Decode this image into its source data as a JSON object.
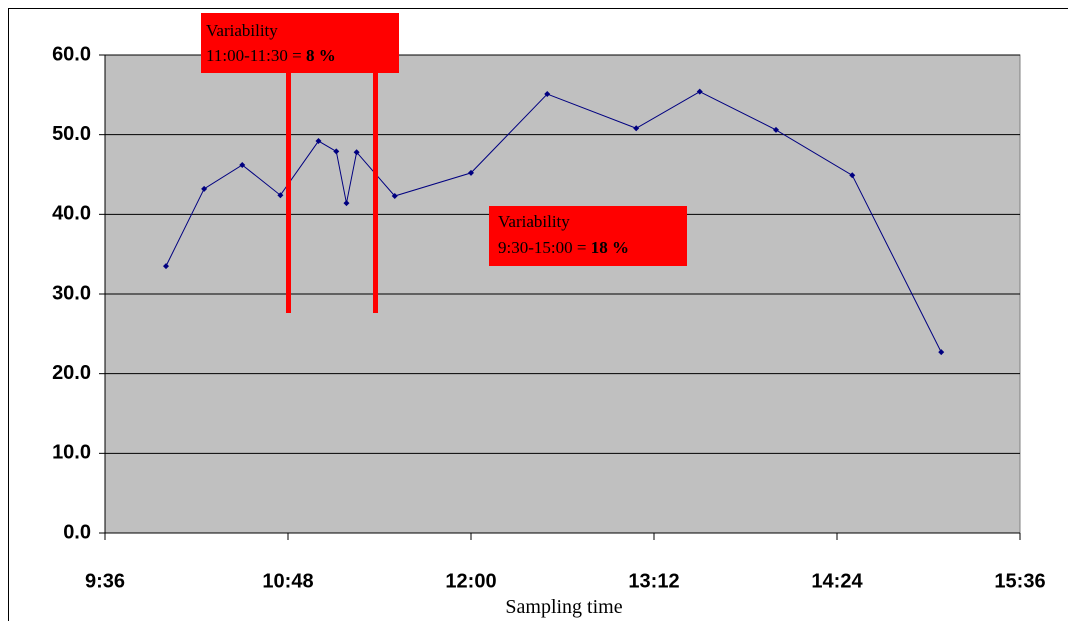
{
  "chart_data": {
    "type": "line",
    "x_label": "Sampling time",
    "x": [
      600,
      615,
      630,
      645,
      660,
      667,
      671,
      675,
      690,
      720,
      750,
      785,
      810,
      840,
      870,
      905
    ],
    "series": [
      {
        "color": "#000080",
        "values": [
          33.5,
          43.2,
          46.2,
          42.4,
          49.2,
          47.9,
          41.4,
          47.8,
          42.3,
          45.2,
          55.1,
          50.8,
          55.4,
          50.6,
          44.9,
          22.7
        ]
      }
    ],
    "xlim": [
      576,
      936
    ],
    "xticks": [
      {
        "value": 576,
        "label": "9:36"
      },
      {
        "value": 648,
        "label": "10:48"
      },
      {
        "value": 720,
        "label": "12:00"
      },
      {
        "value": 792,
        "label": "13:12"
      },
      {
        "value": 864,
        "label": "14:24"
      },
      {
        "value": 936,
        "label": "15:36"
      }
    ],
    "ylim": [
      0,
      60
    ],
    "yticks": [
      {
        "value": 0,
        "label": "0.0"
      },
      {
        "value": 10,
        "label": "10.0"
      },
      {
        "value": 20,
        "label": "20.0"
      },
      {
        "value": 30,
        "label": "30.0"
      },
      {
        "value": 40,
        "label": "40.0"
      },
      {
        "value": 50,
        "label": "50.0"
      },
      {
        "value": 60,
        "label": "60.0"
      }
    ],
    "grid": true,
    "annotations": [
      {
        "title": "Variability",
        "range": "11:00-11:30 =",
        "value": "8 %"
      },
      {
        "title": "Variability",
        "range": "9:30-15:00 =",
        "value": "18 %"
      }
    ]
  }
}
